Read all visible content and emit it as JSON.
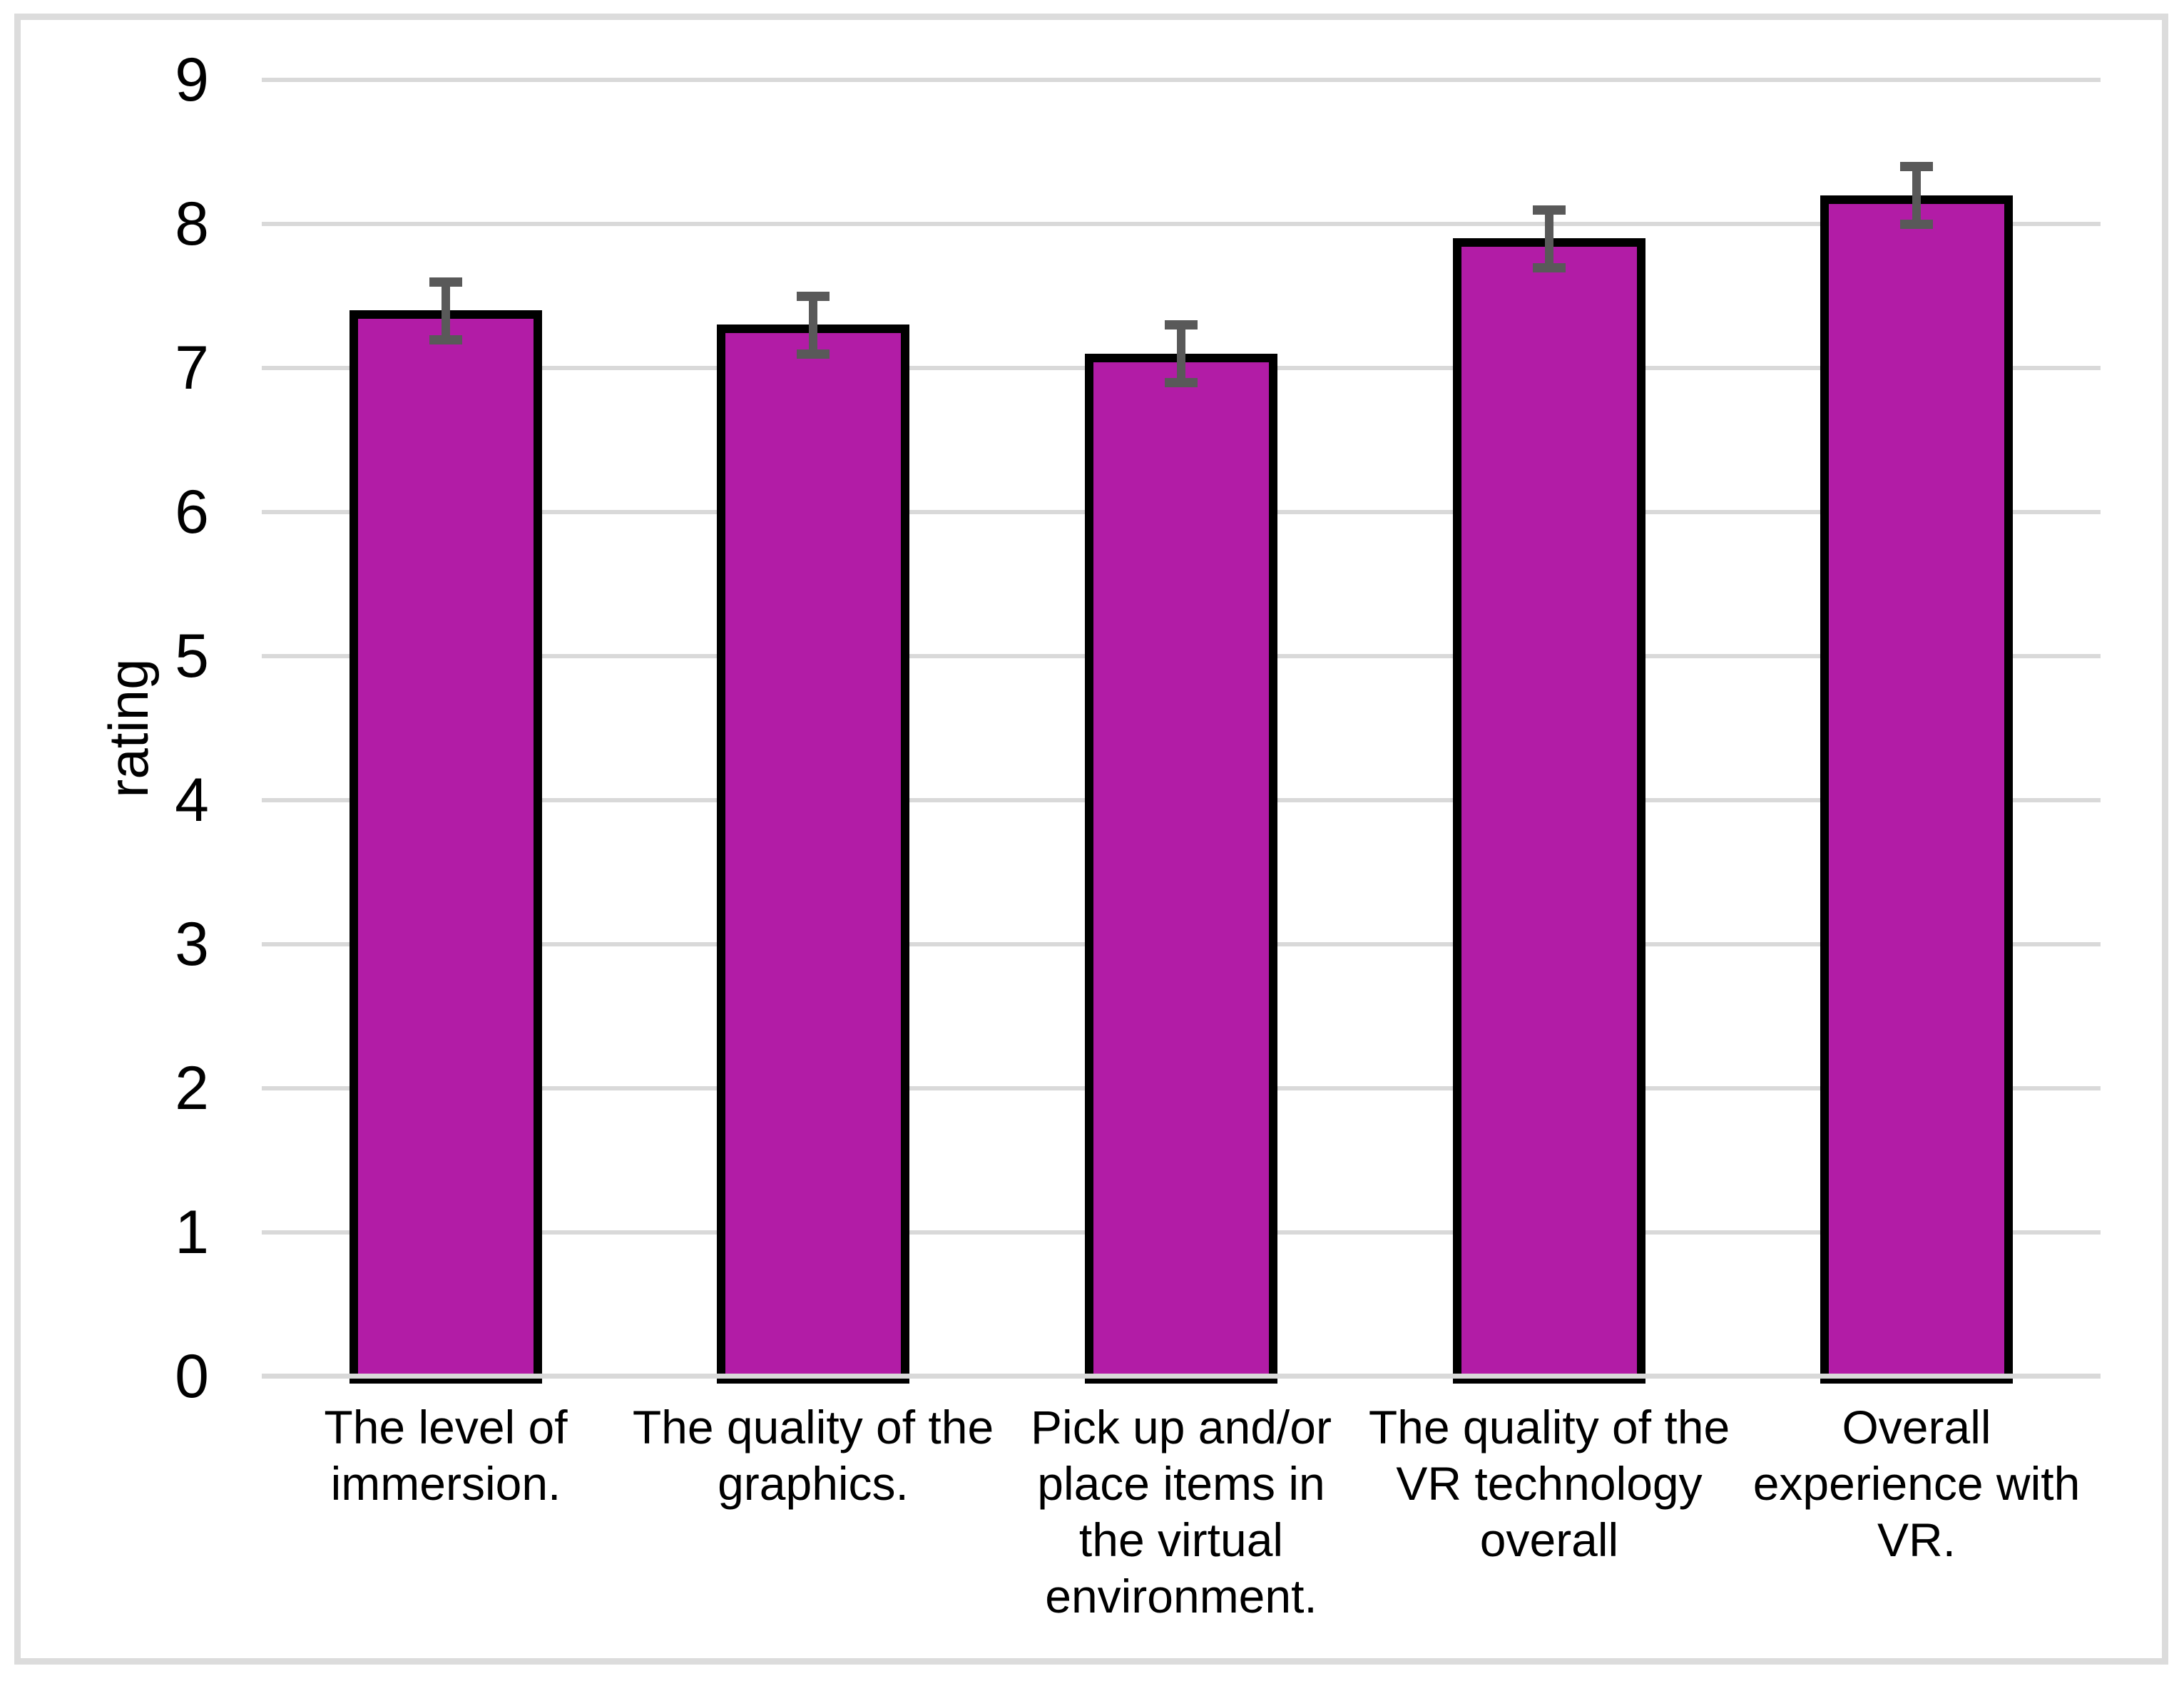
{
  "chart_data": {
    "type": "bar",
    "title": "",
    "xlabel": "",
    "ylabel": "rating",
    "ylim": [
      0,
      9
    ],
    "yticks": [
      0,
      1,
      2,
      3,
      4,
      5,
      6,
      7,
      8,
      9
    ],
    "grid": "horizontal",
    "legend_position": "none",
    "categories": [
      "The level of\nimmersion.",
      "The quality of the\ngraphics.",
      "Pick up and/or\nplace items in\nthe virtual\nenvironment.",
      "The quality of the\nVR technology\noverall",
      "Overall\nexperience with\nVR."
    ],
    "series": [
      {
        "name": "rating",
        "values": [
          7.4,
          7.3,
          7.1,
          7.9,
          8.2
        ],
        "error_bars": [
          0.2,
          0.2,
          0.2,
          0.2,
          0.2
        ]
      }
    ],
    "colors": {
      "bar_fill": "#B21CA6",
      "bar_border": "#000000",
      "error_bar": "#595959",
      "gridline": "#D9D9D9",
      "axis_line": "#D9D9D9",
      "frame_border": "#DCDCDC",
      "text": "#000000"
    }
  }
}
